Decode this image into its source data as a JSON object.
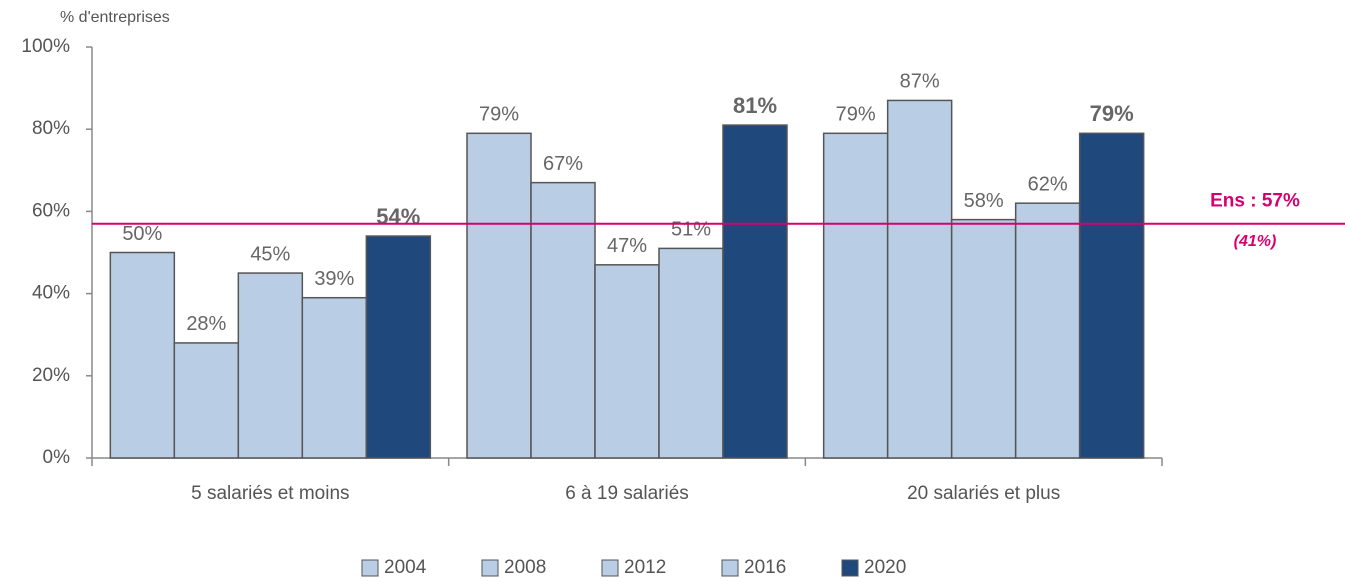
{
  "chart_data": {
    "type": "bar",
    "y_axis_label": "% d'entreprises",
    "categories": [
      "5 salariés et moins",
      "6 à 19 salariés",
      "20 salariés et plus"
    ],
    "series": [
      {
        "name": "2004",
        "color": "#b9cde5",
        "values": [
          50,
          79,
          79
        ],
        "value_labels": [
          "50%",
          "79%",
          "79%"
        ]
      },
      {
        "name": "2008",
        "color": "#b9cde5",
        "values": [
          28,
          67,
          87
        ],
        "value_labels": [
          "28%",
          "67%",
          "87%"
        ]
      },
      {
        "name": "2012",
        "color": "#b9cde5",
        "values": [
          45,
          47,
          58
        ],
        "value_labels": [
          "45%",
          "47%",
          "58%"
        ]
      },
      {
        "name": "2016",
        "color": "#b9cde5",
        "values": [
          39,
          51,
          62
        ],
        "value_labels": [
          "39%",
          "51%",
          "62%"
        ]
      },
      {
        "name": "2020",
        "color": "#1f497d",
        "values": [
          54,
          81,
          79
        ],
        "value_labels": [
          "54%",
          "81%",
          "79%"
        ]
      }
    ],
    "ylim": [
      0,
      100
    ],
    "yticks": [
      {
        "value": 0,
        "label": "0%"
      },
      {
        "value": 20,
        "label": "20%"
      },
      {
        "value": 40,
        "label": "40%"
      },
      {
        "value": 60,
        "label": "60%"
      },
      {
        "value": 80,
        "label": "80%"
      },
      {
        "value": 100,
        "label": "100%"
      }
    ],
    "reference_line": {
      "value": 57,
      "label": "Ens : 57%",
      "sublabel": "(41%)",
      "color": "#d6006f"
    },
    "legend": "bottom"
  }
}
